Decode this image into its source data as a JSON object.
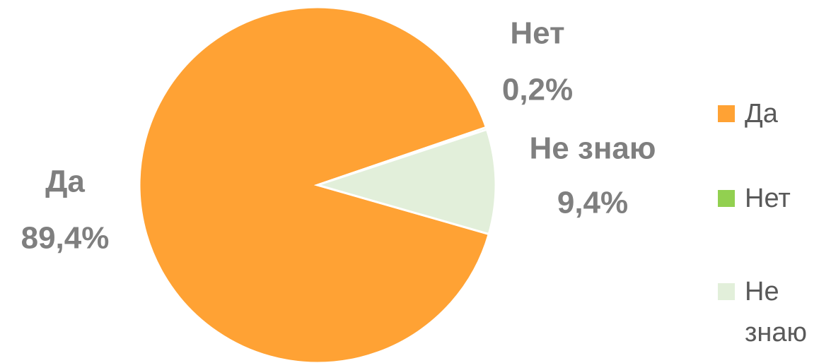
{
  "chart_data": {
    "type": "pie",
    "categories": [
      "Да",
      "Нет",
      "Не знаю"
    ],
    "values": [
      89.4,
      0.2,
      9.4
    ],
    "value_labels": [
      "89,4%",
      "0,2%",
      "9,4%"
    ],
    "colors": [
      "#ffa234",
      "#92d050",
      "#e2efda"
    ],
    "legend": "right"
  }
}
